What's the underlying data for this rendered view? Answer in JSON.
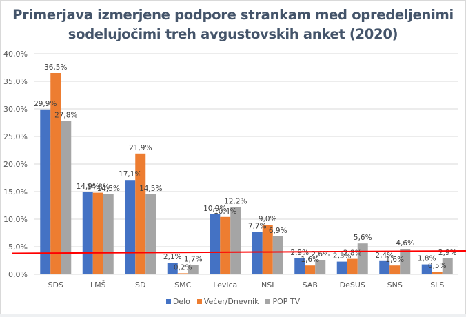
{
  "chart_data": {
    "type": "bar",
    "title_lines": [
      "Primerjava  izmerjene podpore strankam  med opredeljenimi",
      "sodelujočimi  treh avgustovskih  anket (2020)"
    ],
    "xlabel": "",
    "ylabel": "",
    "ylim": [
      0,
      40
    ],
    "yticks": [
      0,
      5,
      10,
      15,
      20,
      25,
      30,
      35,
      40
    ],
    "ytick_labels": [
      "0,0%",
      "5,0%",
      "10,0%",
      "15,0%",
      "20,0%",
      "25,0%",
      "30,0%",
      "35,0%",
      "40,0%"
    ],
    "grid": true,
    "legend_position": "bottom",
    "categories": [
      "SDS",
      "LMŠ",
      "SD",
      "SMC",
      "Levica",
      "NSI",
      "SAB",
      "DeSUS",
      "SNS",
      "SLS"
    ],
    "series": [
      {
        "name": "Delo",
        "color": "#4472c4",
        "values": [
          29.9,
          14.9,
          17.1,
          2.1,
          10.9,
          7.7,
          2.9,
          2.3,
          2.4,
          1.8
        ],
        "labels": [
          "29,9%",
          "14,9%",
          "17,1%",
          "2,1%",
          "10,9%",
          "7,7%",
          "2,9%",
          "2,3%",
          "2,4%",
          "1,8%"
        ]
      },
      {
        "name": "Večer/Dnevnik",
        "color": "#ed7d31",
        "values": [
          36.5,
          14.8,
          21.9,
          0.2,
          10.4,
          9.0,
          1.6,
          2.8,
          1.6,
          0.5
        ],
        "labels": [
          "36,5%",
          "14,8%",
          "21,9%",
          "0,2%",
          "10,4%",
          "9,0%",
          "1,6%",
          "2,8%",
          "1,6%",
          "0,5%"
        ]
      },
      {
        "name": "POP TV",
        "color": "#a5a5a5",
        "values": [
          27.8,
          14.5,
          14.5,
          1.7,
          12.2,
          6.9,
          2.6,
          5.6,
          4.6,
          2.9
        ],
        "labels": [
          "27,8%",
          "14,5%",
          "14,5%",
          "1,7%",
          "12,2%",
          "6,9%",
          "2,6%",
          "5,6%",
          "4,6%",
          "2,9%"
        ]
      }
    ],
    "annotations": [
      {
        "type": "threshold-line",
        "value": 4.0,
        "color": "#ff0000",
        "description": "hand-drawn red line near 4% threshold"
      }
    ]
  }
}
